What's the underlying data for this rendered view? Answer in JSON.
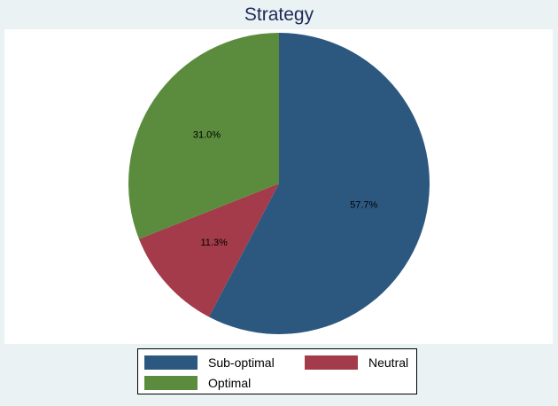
{
  "chart_data": {
    "type": "pie",
    "title": "Strategy",
    "slices": [
      {
        "label": "Sub-optimal",
        "value": 57.7,
        "display": "57.7%",
        "color": "#2c5880"
      },
      {
        "label": "Neutral",
        "value": 11.3,
        "display": "11.3%",
        "color": "#a33b4a"
      },
      {
        "label": "Optimal",
        "value": 31.0,
        "display": "31.0%",
        "color": "#5b8c3e"
      }
    ],
    "start_angle": "12 o'clock",
    "direction": "clockwise",
    "legend_position": "bottom"
  },
  "colors": {
    "background": "#eaf2f3",
    "plot_background": "#ffffff",
    "title": "#1e2a5a"
  }
}
